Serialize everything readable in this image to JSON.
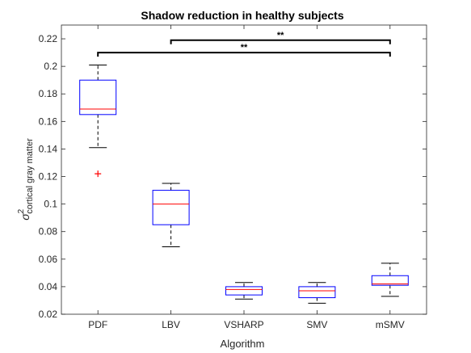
{
  "chart_data": {
    "type": "boxplot",
    "title": "Shadow reduction in healthy subjects",
    "xlabel": "Algorithm",
    "ylabel": {
      "base": "σ",
      "superscript": "2",
      "subscript": "cortical gray matter"
    },
    "ylim": [
      0.02,
      0.23
    ],
    "yticks": [
      0.02,
      0.04,
      0.06,
      0.08,
      0.1,
      0.12,
      0.14,
      0.16,
      0.18,
      0.2,
      0.22
    ],
    "categories": [
      "PDF",
      "LBV",
      "VSHARP",
      "SMV",
      "mSMV"
    ],
    "boxes": [
      {
        "category": "PDF",
        "whisker_low": 0.141,
        "q1": 0.165,
        "median": 0.169,
        "q3": 0.19,
        "whisker_high": 0.201,
        "outliers": [
          0.122
        ]
      },
      {
        "category": "LBV",
        "whisker_low": 0.069,
        "q1": 0.085,
        "median": 0.1,
        "q3": 0.11,
        "whisker_high": 0.115,
        "outliers": []
      },
      {
        "category": "VSHARP",
        "whisker_low": 0.031,
        "q1": 0.034,
        "median": 0.038,
        "q3": 0.04,
        "whisker_high": 0.043,
        "outliers": []
      },
      {
        "category": "SMV",
        "whisker_low": 0.028,
        "q1": 0.032,
        "median": 0.037,
        "q3": 0.04,
        "whisker_high": 0.043,
        "outliers": []
      },
      {
        "category": "mSMV",
        "whisker_low": 0.033,
        "q1": 0.041,
        "median": 0.042,
        "q3": 0.048,
        "whisker_high": 0.057,
        "outliers": []
      }
    ],
    "significance": [
      {
        "from": "LBV",
        "to": "mSMV",
        "y": 0.219,
        "label": "**"
      },
      {
        "from": "PDF",
        "to": "mSMV",
        "y": 0.21,
        "label": "**"
      }
    ],
    "grid": false,
    "legend": "none",
    "colors": {
      "box": "#0000ff",
      "median": "#ff0000",
      "whisker": "#000000",
      "outlier": "#ff0000",
      "axis": "#262626",
      "bracket": "#000000"
    }
  }
}
